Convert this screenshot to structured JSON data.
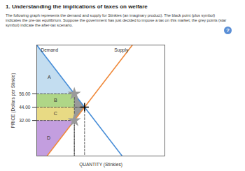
{
  "page": {
    "heading": "1. Understanding the implications of taxes on welfare",
    "text": "The following graph represents the demand and supply for Stinkies (an imaginary product). The black point (plus symbol) indicates the pre-tax equilibrium. Suppose the government has just decided to impose a tax on this market; the grey points (star symbol) indicate the after-tax scenario.",
    "help_icon": "?"
  },
  "chart_data": {
    "type": "line",
    "x_label": "QUANTITY (Stinkies)",
    "y_label": "PRICE (Dollars per Stinkie)",
    "xlim": [
      0,
      150
    ],
    "xticks": [],
    "ylim": [
      0,
      100
    ],
    "yticks": [
      {
        "value": 32,
        "label": "32.00"
      },
      {
        "value": 44,
        "label": "44.00"
      },
      {
        "value": 56,
        "label": "56.00"
      }
    ],
    "tick_labels": "y",
    "grid": false,
    "series": [
      {
        "name": "Demand",
        "color": "#4a8fd8",
        "x": [
          0,
          100
        ],
        "values": [
          100,
          0
        ]
      },
      {
        "name": "Supply",
        "color": "#f08a3c",
        "x": [
          12,
          112
        ],
        "values": [
          0,
          100
        ]
      }
    ],
    "areas": [
      {
        "name": "A",
        "color": "#bcd9ee",
        "x": [
          0,
          0,
          44
        ],
        "y": [
          100,
          56,
          56
        ]
      },
      {
        "name": "B",
        "color": "#a6d27a",
        "x": [
          0,
          44,
          44,
          0
        ],
        "y": [
          56,
          56,
          44,
          44
        ]
      },
      {
        "name": "C",
        "color": "#e6d677",
        "x": [
          0,
          44,
          44,
          0
        ],
        "y": [
          44,
          44,
          32,
          32
        ]
      },
      {
        "name": "D",
        "color": "#bc94dc",
        "x": [
          0,
          44,
          12,
          0
        ],
        "y": [
          32,
          32,
          0,
          0
        ]
      },
      {
        "name": null,
        "color": "#8f8f8f",
        "x": [
          44,
          56,
          44
        ],
        "y": [
          56,
          44,
          32
        ]
      }
    ],
    "markers": [
      {
        "x": 56,
        "y": 44,
        "marker": "plus",
        "color": "#000000"
      },
      {
        "x": 44,
        "y": 56,
        "marker": "star",
        "color": "#9a9a9a"
      },
      {
        "x": 44,
        "y": 32,
        "marker": "star",
        "color": "#9a9a9a"
      }
    ]
  }
}
